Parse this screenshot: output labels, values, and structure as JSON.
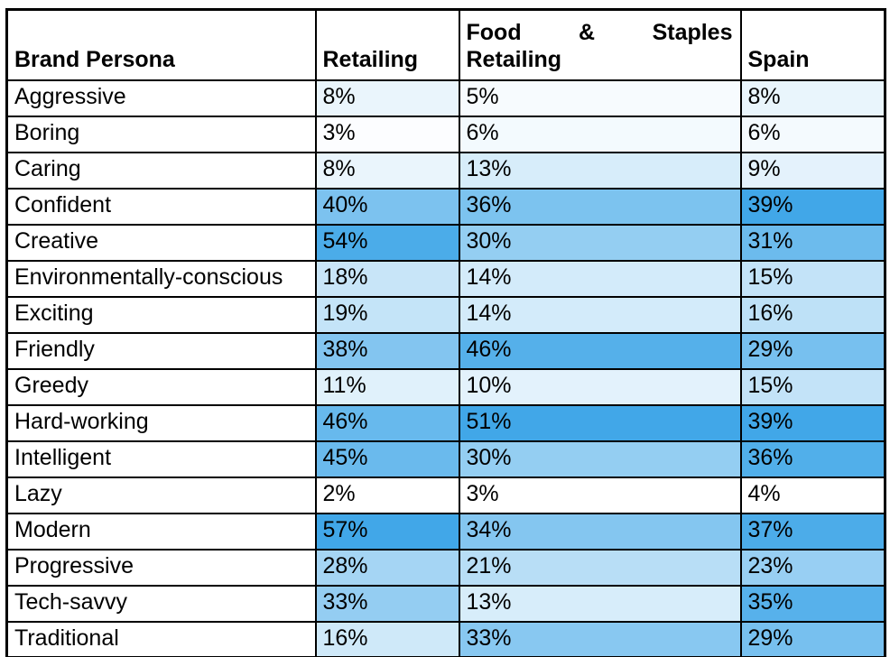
{
  "chart_data": {
    "type": "heatmap",
    "corner_header": "Brand Persona",
    "columns": [
      "Retailing",
      "Food & Staples Retailing",
      "Spain"
    ],
    "column3_wrap": {
      "line1_words": [
        "Food",
        "&",
        "Staples"
      ],
      "line2": "Retailing"
    },
    "rows": [
      "Aggressive",
      "Boring",
      "Caring",
      "Confident",
      "Creative",
      "Environmentally-conscious",
      "Exciting",
      "Friendly",
      "Greedy",
      "Hard-working",
      "Intelligent",
      "Lazy",
      "Modern",
      "Progressive",
      "Tech-savvy",
      "Traditional"
    ],
    "values_percent": [
      [
        8,
        5,
        8
      ],
      [
        3,
        6,
        6
      ],
      [
        8,
        13,
        9
      ],
      [
        40,
        36,
        39
      ],
      [
        54,
        30,
        31
      ],
      [
        18,
        14,
        15
      ],
      [
        19,
        14,
        16
      ],
      [
        38,
        46,
        29
      ],
      [
        11,
        10,
        15
      ],
      [
        46,
        51,
        39
      ],
      [
        45,
        30,
        36
      ],
      [
        2,
        3,
        4
      ],
      [
        57,
        34,
        37
      ],
      [
        28,
        21,
        23
      ],
      [
        33,
        13,
        35
      ],
      [
        16,
        33,
        29
      ]
    ],
    "value_suffix": "%",
    "color_scale": {
      "type": "2-color-linear",
      "scope": "per-column",
      "min_color": "#FFFFFF",
      "max_color": "#41A7E8"
    },
    "layout": {
      "grid": "black cell borders",
      "header_align": "bottom",
      "justify_col3_header": true,
      "legend": "none"
    }
  }
}
